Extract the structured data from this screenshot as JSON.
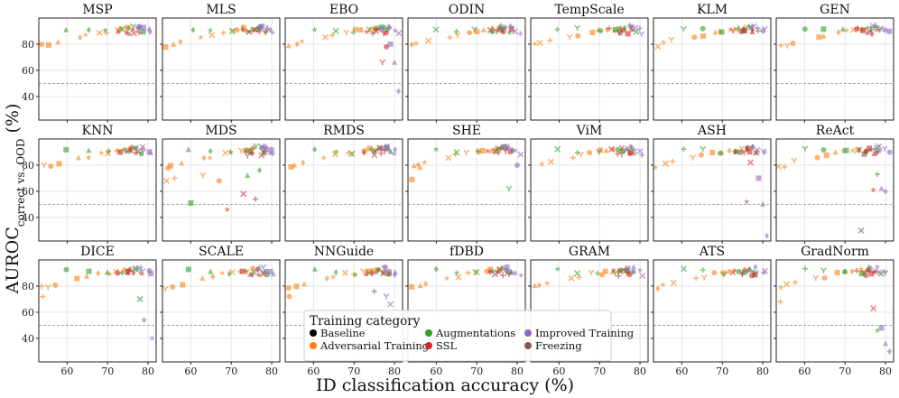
{
  "chart_data": {
    "type": "scatter",
    "xlabel": "ID classification accuracy (%)",
    "ylabel": "AUROC correct vs. OOD (%)",
    "ylabel_parts": {
      "main": "AUROC",
      "sub": "correct vs. OOD",
      "suffix": " (%)"
    },
    "xlim": [
      53,
      82
    ],
    "ylim": [
      22,
      100
    ],
    "xticks": [
      60,
      70,
      80
    ],
    "yticks": [
      40,
      60,
      80
    ],
    "reference_line": 50,
    "grid": true,
    "legend": {
      "title": "Training category",
      "placement": "bottom-center",
      "entries": [
        {
          "name": "Baseline",
          "color": "#000000"
        },
        {
          "name": "Adversarial Training",
          "color": "#ff7f0e"
        },
        {
          "name": "Augmentations",
          "color": "#2ca02c"
        },
        {
          "name": "SSL",
          "color": "#d62728"
        },
        {
          "name": "Improved Training",
          "color": "#9467bd"
        },
        {
          "name": "Freezing",
          "color": "#8c564b"
        }
      ]
    },
    "panels": [
      {
        "title": "MSP",
        "profile": "tight"
      },
      {
        "title": "MLS",
        "profile": "tight"
      },
      {
        "title": "EBO",
        "profile": "ebo"
      },
      {
        "title": "ODIN",
        "profile": "tight"
      },
      {
        "title": "TempScale",
        "profile": "tight"
      },
      {
        "title": "KLM",
        "profile": "tight"
      },
      {
        "title": "GEN",
        "profile": "tight"
      },
      {
        "title": "KNN",
        "profile": "tight"
      },
      {
        "title": "MDS",
        "profile": "mds"
      },
      {
        "title": "RMDS",
        "profile": "tight"
      },
      {
        "title": "SHE",
        "profile": "she"
      },
      {
        "title": "ViM",
        "profile": "tight"
      },
      {
        "title": "ASH",
        "profile": "ash"
      },
      {
        "title": "ReAct",
        "profile": "react"
      },
      {
        "title": "DICE",
        "profile": "dice"
      },
      {
        "title": "SCALE",
        "profile": "tight"
      },
      {
        "title": "NNGuide",
        "profile": "nnguide"
      },
      {
        "title": "fDBD",
        "profile": "tight"
      },
      {
        "title": "GRAM",
        "profile": "tight"
      },
      {
        "title": "ATS",
        "profile": "tight"
      },
      {
        "title": "GradNorm",
        "profile": "gradnorm"
      }
    ],
    "series": [
      {
        "name": "Adversarial Training",
        "x": [
          54,
          55.5,
          57.5,
          63,
          65,
          68,
          70,
          72,
          73.5,
          75
        ],
        "y": [
          79,
          80,
          82,
          86,
          87,
          89,
          90,
          91,
          91.5,
          92
        ]
      },
      {
        "name": "Augmentations",
        "x": [
          60,
          65,
          70,
          74,
          75.5,
          76.5,
          77.5,
          78.5
        ],
        "y": [
          92,
          91,
          90,
          91,
          92,
          93,
          92,
          90
        ]
      },
      {
        "name": "SSL",
        "x": [
          73,
          75,
          76,
          77,
          78
        ],
        "y": [
          91,
          90,
          92,
          89,
          90
        ]
      },
      {
        "name": "Improved Training",
        "x": [
          77,
          78,
          79,
          80,
          80.5
        ],
        "y": [
          93,
          93.5,
          92,
          91,
          89
        ]
      },
      {
        "name": "Freezing",
        "x": [
          75
        ],
        "y": [
          89
        ]
      }
    ]
  }
}
